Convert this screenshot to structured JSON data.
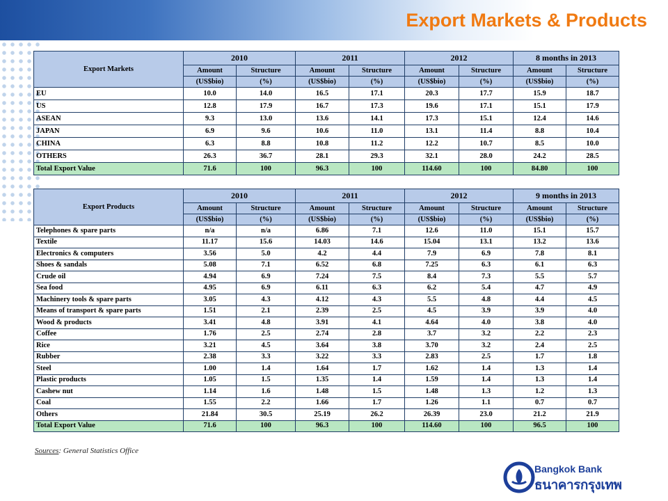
{
  "slide": {
    "title": "Export Markets & Products",
    "sources_label": "Sources",
    "sources_text": ": General Statistics Office"
  },
  "markets_table": {
    "corner": "Export Markets",
    "years": [
      "2010",
      "2011",
      "2012",
      "8 months in 2013"
    ],
    "sub_headers": [
      "Amount (US$bio)",
      "Structure (%)"
    ],
    "rows": [
      {
        "label": "EU",
        "values": [
          "10.0",
          "14.0",
          "16.5",
          "17.1",
          "20.3",
          "17.7",
          "15.9",
          "18.7"
        ]
      },
      {
        "label": "US",
        "values": [
          "12.8",
          "17.9",
          "16.7",
          "17.3",
          "19.6",
          "17.1",
          "15.1",
          "17.9"
        ]
      },
      {
        "label": "ASEAN",
        "values": [
          "9.3",
          "13.0",
          "13.6",
          "14.1",
          "17.3",
          "15.1",
          "12.4",
          "14.6"
        ]
      },
      {
        "label": "JAPAN",
        "values": [
          "6.9",
          "9.6",
          "10.6",
          "11.0",
          "13.1",
          "11.4",
          "8.8",
          "10.4"
        ]
      },
      {
        "label": "CHINA",
        "values": [
          "6.3",
          "8.8",
          "10.8",
          "11.2",
          "12.2",
          "10.7",
          "8.5",
          "10.0"
        ]
      },
      {
        "label": "OTHERS",
        "values": [
          "26.3",
          "36.7",
          "28.1",
          "29.3",
          "32.1",
          "28.0",
          "24.2",
          "28.5"
        ]
      }
    ],
    "total": {
      "label": "Total Export Value",
      "values": [
        "71.6",
        "100",
        "96.3",
        "100",
        "114.60",
        "100",
        "84.80",
        "100"
      ]
    }
  },
  "products_table": {
    "corner": "Export Products",
    "years": [
      "2010",
      "2011",
      "2012",
      "9 months in 2013"
    ],
    "sub_headers": [
      "Amount (US$bio)",
      "Structure (%)"
    ],
    "rows": [
      {
        "label": "Telephones & spare parts",
        "values": [
          "n/a",
          "n/a",
          "6.86",
          "7.1",
          "12.6",
          "11.0",
          "15.1",
          "15.7"
        ]
      },
      {
        "label": "Textile",
        "values": [
          "11.17",
          "15.6",
          "14.03",
          "14.6",
          "15.04",
          "13.1",
          "13.2",
          "13.6"
        ]
      },
      {
        "label": "Electronics & computers",
        "values": [
          "3.56",
          "5.0",
          "4.2",
          "4.4",
          "7.9",
          "6.9",
          "7.8",
          "8.1"
        ]
      },
      {
        "label": "Shoes & sandals",
        "values": [
          "5.08",
          "7.1",
          "6.52",
          "6.8",
          "7.25",
          "6.3",
          "6.1",
          "6.3"
        ]
      },
      {
        "label": "Crude oil",
        "values": [
          "4.94",
          "6.9",
          "7.24",
          "7.5",
          "8.4",
          "7.3",
          "5.5",
          "5.7"
        ]
      },
      {
        "label": "Sea food",
        "values": [
          "4.95",
          "6.9",
          "6.11",
          "6.3",
          "6.2",
          "5.4",
          "4.7",
          "4.9"
        ]
      },
      {
        "label": "Machinery tools & spare parts",
        "values": [
          "3.05",
          "4.3",
          "4.12",
          "4.3",
          "5.5",
          "4.8",
          "4.4",
          "4.5"
        ]
      },
      {
        "label": "Means of transport & spare parts",
        "values": [
          "1.51",
          "2.1",
          "2.39",
          "2.5",
          "4.5",
          "3.9",
          "3.9",
          "4.0"
        ]
      },
      {
        "label": "Wood & products",
        "values": [
          "3.41",
          "4.8",
          "3.91",
          "4.1",
          "4.64",
          "4.0",
          "3.8",
          "4.0"
        ]
      },
      {
        "label": "Coffee",
        "values": [
          "1.76",
          "2.5",
          "2.74",
          "2.8",
          "3.7",
          "3.2",
          "2.2",
          "2.3"
        ]
      },
      {
        "label": "Rice",
        "values": [
          "3.21",
          "4.5",
          "3.64",
          "3.8",
          "3.70",
          "3.2",
          "2.4",
          "2.5"
        ]
      },
      {
        "label": "Rubber",
        "values": [
          "2.38",
          "3.3",
          "3.22",
          "3.3",
          "2.83",
          "2.5",
          "1.7",
          "1.8"
        ]
      },
      {
        "label": "Steel",
        "values": [
          "1.00",
          "1.4",
          "1.64",
          "1.7",
          "1.62",
          "1.4",
          "1.3",
          "1.4"
        ]
      },
      {
        "label": "Plastic products",
        "values": [
          "1.05",
          "1.5",
          "1.35",
          "1.4",
          "1.59",
          "1.4",
          "1.3",
          "1.4"
        ]
      },
      {
        "label": "Cashew nut",
        "values": [
          "1.14",
          "1.6",
          "1.48",
          "1.5",
          "1.48",
          "1.3",
          "1.2",
          "1.3"
        ]
      },
      {
        "label": "Coal",
        "values": [
          "1.55",
          "2.2",
          "1.66",
          "1.7",
          "1.26",
          "1.1",
          "0.7",
          "0.7"
        ]
      },
      {
        "label": "Others",
        "values": [
          "21.84",
          "30.5",
          "25.19",
          "26.2",
          "26.39",
          "23.0",
          "21.2",
          "21.9"
        ]
      }
    ],
    "total": {
      "label": "Total Export Value",
      "values": [
        "71.6",
        "100",
        "96.3",
        "100",
        "114.60",
        "100",
        "96.5",
        "100"
      ]
    }
  },
  "logo": {
    "name_en": "Bangkok Bank",
    "name_th": "ธนาคารกรุงเทพ",
    "icon": "bangkok-bank-lotus-icon"
  },
  "colors": {
    "title": "#f07a12",
    "header_fill": "#b8cbe9",
    "total_fill": "#b9e7c2",
    "brand_blue": "#1d3f9a"
  }
}
